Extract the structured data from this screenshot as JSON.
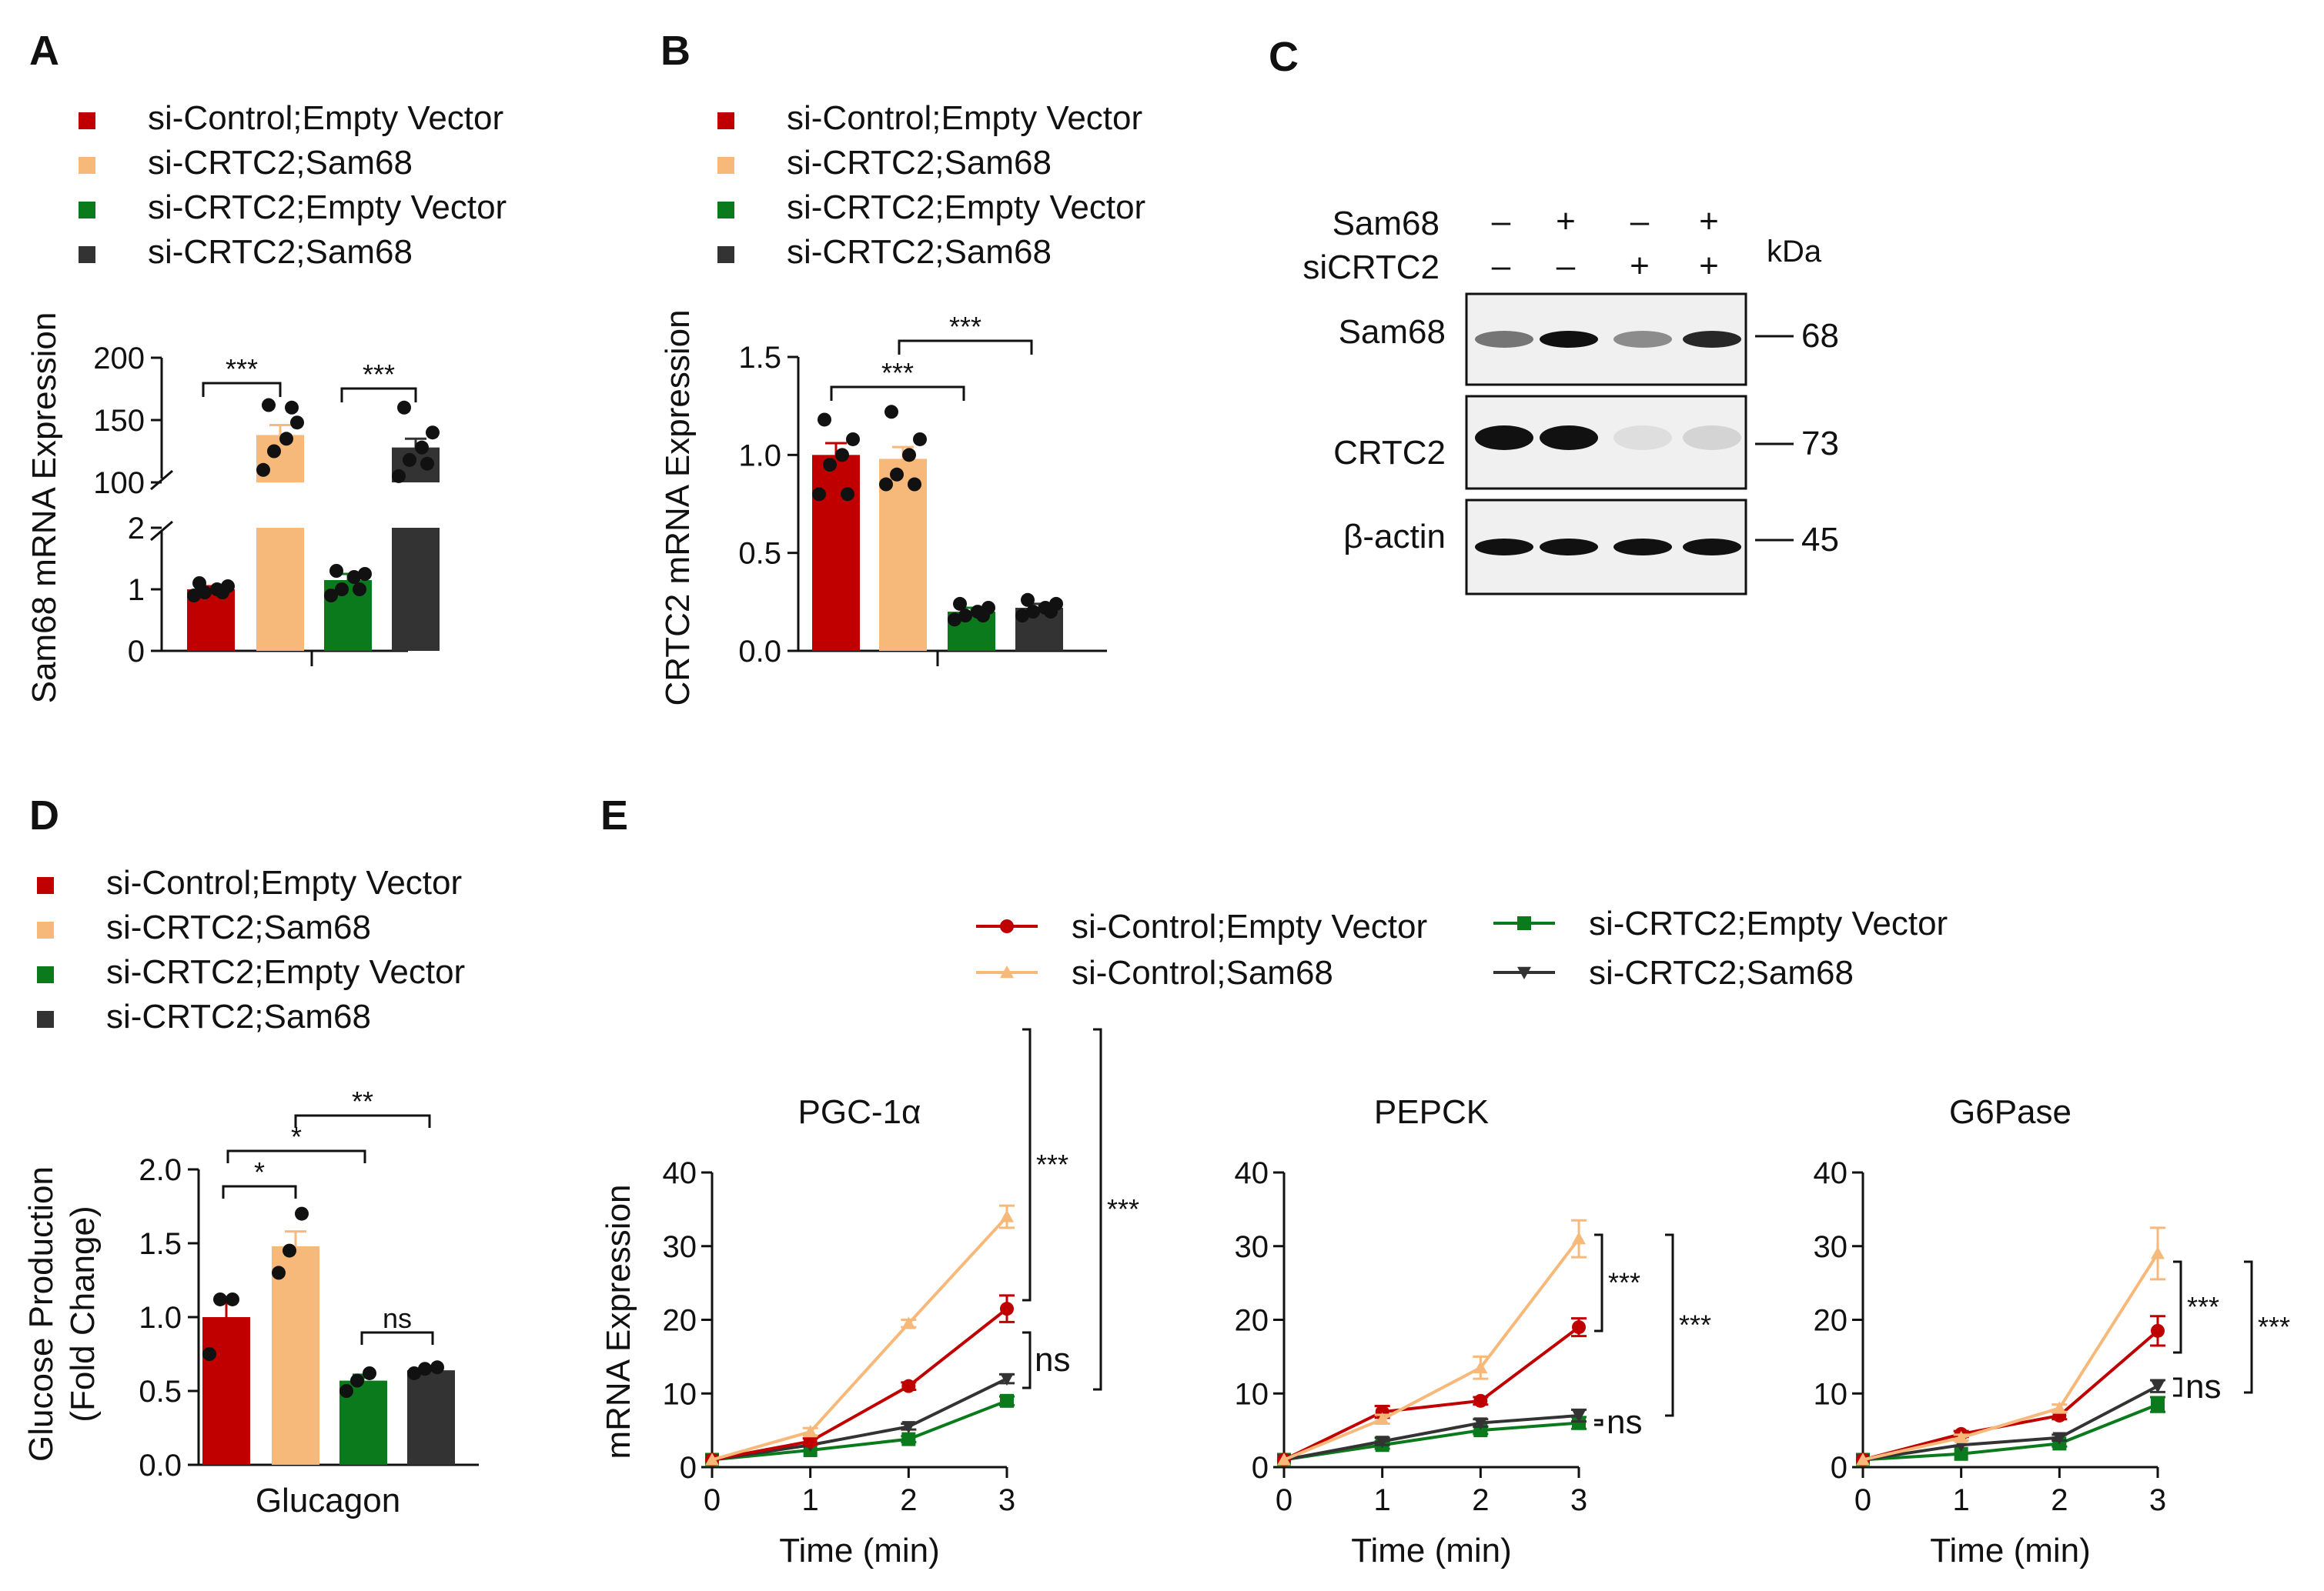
{
  "colors": {
    "red": "#c00000",
    "orange": "#f7b97a",
    "green": "#0a7a1c",
    "dark": "#333333"
  },
  "chart_data": [
    {
      "panel": "A",
      "type": "bar",
      "legend": [
        "si-Control;Empty Vector",
        "si-CRTC2;Sam68",
        "si-CRTC2;Empty Vector",
        "si-CRTC2;Sam68"
      ],
      "ylabel": "Sam68 mRNA Expression",
      "ylim_lower": [
        0,
        2
      ],
      "ylim_upper": [
        100,
        200
      ],
      "yticks_lower": [
        "0",
        "1",
        "2"
      ],
      "yticks_upper": [
        "100",
        "150",
        "200"
      ],
      "series": [
        {
          "name": "si-Control;Empty Vector",
          "value": 1.0,
          "sem": 0.05,
          "points": [
            0.9,
            0.95,
            1.0,
            1.05,
            1.1,
            0.95
          ]
        },
        {
          "name": "si-CRTC2;Sam68",
          "value": 138,
          "sem": 8,
          "points": [
            110,
            125,
            135,
            148,
            162,
            160
          ]
        },
        {
          "name": "si-CRTC2;Empty Vector",
          "value": 1.15,
          "sem": 0.1,
          "points": [
            0.9,
            1.0,
            1.2,
            1.25,
            1.3,
            1.0
          ]
        },
        {
          "name": "si-CRTC2;Sam68",
          "value": 128,
          "sem": 7,
          "points": [
            105,
            118,
            128,
            140,
            160,
            115
          ]
        }
      ],
      "significance": [
        "***",
        "***"
      ]
    },
    {
      "panel": "B",
      "type": "bar",
      "legend": [
        "si-Control;Empty Vector",
        "si-CRTC2;Sam68",
        "si-CRTC2;Empty Vector",
        "si-CRTC2;Sam68"
      ],
      "ylabel": "CRTC2 mRNA Expression",
      "ylim": [
        0,
        1.5
      ],
      "yticks": [
        "0.0",
        "0.5",
        "1.0",
        "1.5"
      ],
      "series": [
        {
          "name": "si-Control;Empty Vector",
          "value": 1.0,
          "sem": 0.06,
          "points": [
            0.8,
            0.95,
            1.0,
            1.08,
            1.18,
            0.8
          ]
        },
        {
          "name": "si-CRTC2;Sam68",
          "value": 0.98,
          "sem": 0.06,
          "points": [
            0.85,
            0.9,
            1.0,
            1.08,
            1.22,
            0.85
          ]
        },
        {
          "name": "si-CRTC2;Empty Vector",
          "value": 0.2,
          "sem": 0.02,
          "points": [
            0.16,
            0.18,
            0.2,
            0.22,
            0.24,
            0.18
          ]
        },
        {
          "name": "si-CRTC2;Sam68",
          "value": 0.22,
          "sem": 0.02,
          "points": [
            0.18,
            0.2,
            0.22,
            0.24,
            0.26,
            0.2
          ]
        }
      ],
      "significance": [
        "***",
        "***"
      ]
    },
    {
      "panel": "D",
      "type": "bar",
      "legend": [
        "si-Control;Empty Vector",
        "si-CRTC2;Sam68",
        "si-CRTC2;Empty Vector",
        "si-CRTC2;Sam68"
      ],
      "ylabel_line1": "Glucose Production",
      "ylabel_line2": "(Fold Change)",
      "xlabel": "Glucagon",
      "ylim": [
        0,
        2.0
      ],
      "yticks": [
        "0.0",
        "0.5",
        "1.0",
        "1.5",
        "2.0"
      ],
      "series": [
        {
          "name": "si-Control;Empty Vector",
          "value": 1.0,
          "sem": 0.1,
          "points": [
            0.75,
            1.12,
            1.12
          ]
        },
        {
          "name": "si-CRTC2;Sam68",
          "value": 1.48,
          "sem": 0.1,
          "points": [
            1.3,
            1.45,
            1.7
          ]
        },
        {
          "name": "si-CRTC2;Empty Vector",
          "value": 0.57,
          "sem": 0.04,
          "points": [
            0.5,
            0.57,
            0.62
          ]
        },
        {
          "name": "si-CRTC2;Sam68",
          "value": 0.64,
          "sem": 0.02,
          "points": [
            0.62,
            0.65,
            0.66
          ]
        }
      ],
      "significance": [
        "*",
        "*",
        "**",
        "ns"
      ]
    },
    {
      "panel": "E",
      "type": "line",
      "legend": [
        "si-Control;Empty Vector",
        "si-Control;Sam68",
        "si-CRTC2;Empty Vector",
        "si-CRTC2;Sam68"
      ],
      "ylabel": "mRNA Expression",
      "xlabel": "Time (min)",
      "x": [
        0,
        1,
        2,
        3
      ],
      "xticks": [
        "0",
        "1",
        "2",
        "3"
      ],
      "ylim": [
        0,
        40
      ],
      "yticks": [
        "0",
        "10",
        "20",
        "30",
        "40"
      ],
      "subplots": [
        {
          "title": "PGC-1α",
          "series": [
            {
              "name": "si-Control;Empty Vector",
              "values": [
                1,
                3.5,
                11,
                21.5
              ],
              "err": [
                0.2,
                0.4,
                0.5,
                1.8
              ]
            },
            {
              "name": "si-Control;Sam68",
              "values": [
                1,
                4.8,
                19.5,
                34
              ],
              "err": [
                0.2,
                0.5,
                0.5,
                1.5
              ]
            },
            {
              "name": "si-CRTC2;Empty Vector",
              "values": [
                1,
                2.3,
                3.8,
                9
              ],
              "err": [
                0.1,
                0.3,
                0.4,
                0.6
              ]
            },
            {
              "name": "si-CRTC2;Sam68",
              "values": [
                1,
                3,
                5.5,
                12
              ],
              "err": [
                0.1,
                0.3,
                0.4,
                0.6
              ]
            }
          ],
          "significance": [
            "***",
            "***",
            "ns"
          ]
        },
        {
          "title": "PEPCK",
          "series": [
            {
              "name": "si-Control;Empty Vector",
              "values": [
                1,
                7.5,
                9,
                19
              ],
              "err": [
                0.2,
                0.8,
                0.5,
                1.2
              ]
            },
            {
              "name": "si-Control;Sam68",
              "values": [
                1,
                6.5,
                13.5,
                31
              ],
              "err": [
                0.2,
                0.6,
                1.5,
                2.5
              ]
            },
            {
              "name": "si-CRTC2;Empty Vector",
              "values": [
                1,
                3,
                5,
                6
              ],
              "err": [
                0.1,
                0.5,
                0.5,
                0.8
              ]
            },
            {
              "name": "si-CRTC2;Sam68",
              "values": [
                1,
                3.5,
                6,
                7
              ],
              "err": [
                0.1,
                0.5,
                0.5,
                0.8
              ]
            }
          ],
          "significance": [
            "***",
            "***",
            "ns"
          ]
        },
        {
          "title": "G6Pase",
          "series": [
            {
              "name": "si-Control;Empty Vector",
              "values": [
                1,
                4.5,
                7,
                18.5
              ],
              "err": [
                0.2,
                0.4,
                0.5,
                2
              ]
            },
            {
              "name": "si-Control;Sam68",
              "values": [
                1,
                4,
                8,
                29
              ],
              "err": [
                0.2,
                0.4,
                0.5,
                3.5
              ]
            },
            {
              "name": "si-CRTC2;Empty Vector",
              "values": [
                1,
                1.8,
                3.2,
                8.5
              ],
              "err": [
                0.1,
                0.3,
                0.4,
                1
              ]
            },
            {
              "name": "si-CRTC2;Sam68",
              "values": [
                1,
                3,
                4,
                11
              ],
              "err": [
                0.1,
                0.3,
                0.4,
                0.8
              ]
            }
          ],
          "significance": [
            "***",
            "***",
            "ns"
          ]
        }
      ]
    }
  ],
  "panels": {
    "A": "A",
    "B": "B",
    "C": "C",
    "D": "D",
    "E": "E"
  },
  "western": {
    "row1_label": "Sam68",
    "row2_label": "siCRTC2",
    "row1_signs": [
      "–",
      "+",
      "–",
      "+"
    ],
    "row2_signs": [
      "–",
      "–",
      "+",
      "+"
    ],
    "kda": "kDa",
    "bands": [
      {
        "label": "Sam68",
        "marker": "68"
      },
      {
        "label": "CRTC2",
        "marker": "73"
      },
      {
        "label": "β-actin",
        "marker": "45"
      }
    ]
  }
}
